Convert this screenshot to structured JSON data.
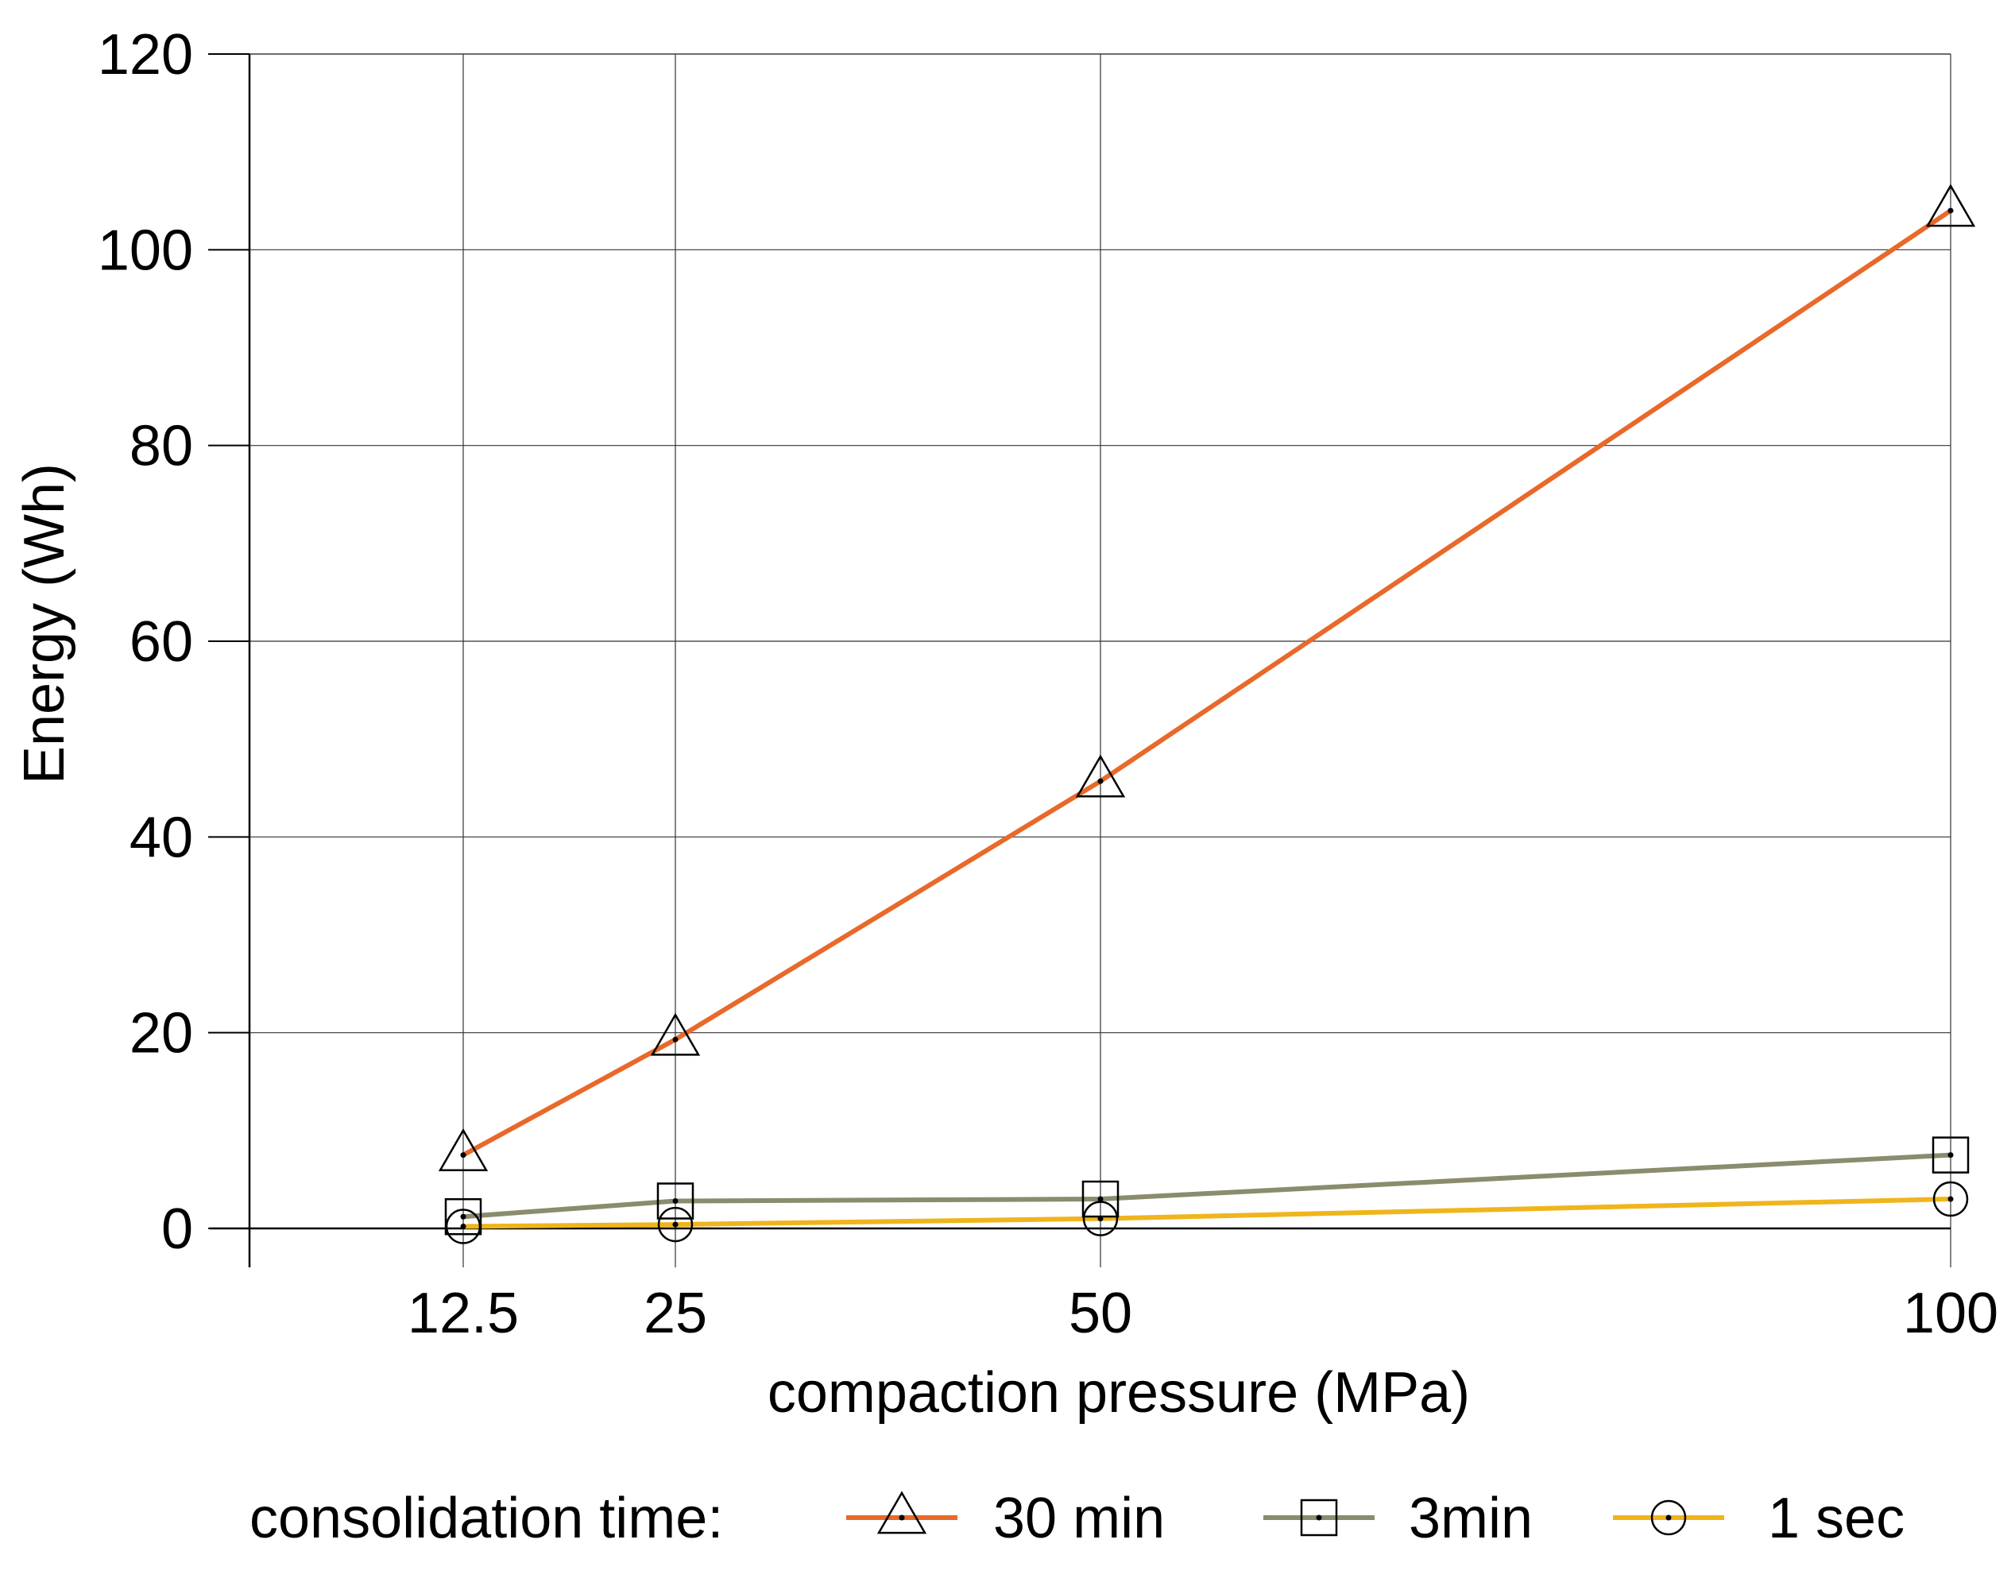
{
  "chart_data": {
    "type": "line",
    "title": "",
    "xlabel": "compaction pressure (MPa)",
    "ylabel": "Energy (Wh)",
    "x": [
      12.5,
      25,
      50,
      100
    ],
    "x_tick_labels": [
      "12.5",
      "25",
      "50",
      "100"
    ],
    "ylim": [
      0,
      120
    ],
    "y_ticks": [
      0,
      20,
      40,
      60,
      80,
      100,
      120
    ],
    "y_tick_labels": [
      "0",
      "20",
      "40",
      "60",
      "80",
      "100",
      "120"
    ],
    "grid": true,
    "legend_title": "consolidation time:",
    "legend_position": "bottom",
    "series": [
      {
        "name": "30 min",
        "color": "#e8692a",
        "marker": "triangle",
        "values": [
          7.5,
          19.3,
          45.7,
          104.0
        ]
      },
      {
        "name": "3min",
        "color": "#8b8c6e",
        "marker": "square",
        "values": [
          1.2,
          2.8,
          3.0,
          7.5
        ]
      },
      {
        "name": "1 sec",
        "color": "#f0b51c",
        "marker": "circle",
        "values": [
          0.2,
          0.4,
          1.0,
          3.0
        ]
      }
    ]
  }
}
